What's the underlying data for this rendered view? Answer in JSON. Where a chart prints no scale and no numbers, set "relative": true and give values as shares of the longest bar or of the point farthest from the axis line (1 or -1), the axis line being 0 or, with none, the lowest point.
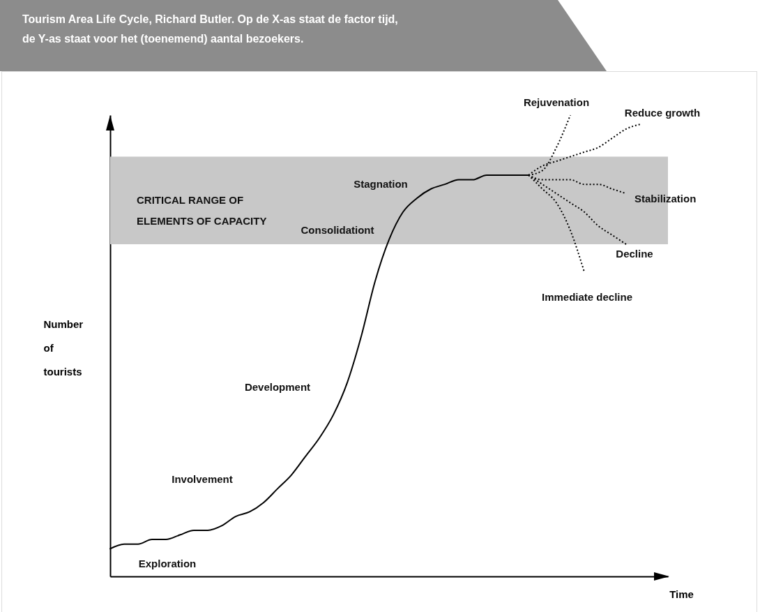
{
  "chart_data": {
    "type": "line",
    "title": "Tourism Area Life Cycle, Richard Butler. Op de X-as staat de factor tijd, de Y-as staat voor het (toenemend) aantal bezoekers.",
    "xlabel": "Time",
    "ylabel": "Number of tourists",
    "relative": true,
    "categories": [
      null,
      null,
      null,
      null,
      null,
      null,
      null,
      null,
      null,
      null,
      null,
      null,
      null,
      null,
      null,
      null,
      null,
      null,
      null,
      null,
      null,
      null,
      null,
      null,
      null,
      null,
      null,
      null,
      null,
      null,
      null,
      null,
      null,
      null,
      null,
      null,
      null,
      null,
      null
    ],
    "series": [
      {
        "color": "#000000",
        "line_style": "solid",
        "values": [
          0.06,
          0.07,
          0.07,
          0.08,
          0.08,
          0.09,
          0.1,
          0.1,
          0.11,
          0.13,
          0.14,
          0.16,
          0.19,
          0.22,
          0.26,
          0.3,
          0.35,
          0.42,
          0.52,
          0.64,
          0.73,
          0.79,
          0.82,
          0.84,
          0.85,
          0.86,
          0.86,
          0.87,
          0.87,
          0.87,
          0.87,
          null,
          null,
          null,
          null,
          null,
          null,
          null,
          null
        ]
      },
      {
        "name": "Rejuvenation",
        "color": "#000000",
        "line_style": "dotted",
        "values": [
          null,
          null,
          null,
          null,
          null,
          null,
          null,
          null,
          null,
          null,
          null,
          null,
          null,
          null,
          null,
          null,
          null,
          null,
          null,
          null,
          null,
          null,
          null,
          null,
          null,
          null,
          null,
          null,
          null,
          null,
          0.87,
          0.88,
          0.93,
          1.0,
          null,
          null,
          null,
          null,
          null
        ]
      },
      {
        "name": "Reduce growth",
        "color": "#000000",
        "line_style": "dotted",
        "values": [
          null,
          null,
          null,
          null,
          null,
          null,
          null,
          null,
          null,
          null,
          null,
          null,
          null,
          null,
          null,
          null,
          null,
          null,
          null,
          null,
          null,
          null,
          null,
          null,
          null,
          null,
          null,
          null,
          null,
          null,
          0.87,
          0.89,
          0.9,
          0.91,
          0.92,
          0.93,
          0.95,
          0.97,
          0.98
        ]
      },
      {
        "name": "Stabilization",
        "color": "#000000",
        "line_style": "dotted",
        "values": [
          null,
          null,
          null,
          null,
          null,
          null,
          null,
          null,
          null,
          null,
          null,
          null,
          null,
          null,
          null,
          null,
          null,
          null,
          null,
          null,
          null,
          null,
          null,
          null,
          null,
          null,
          null,
          null,
          null,
          null,
          0.87,
          0.86,
          0.86,
          0.86,
          0.85,
          0.85,
          0.84,
          0.83,
          null
        ]
      },
      {
        "name": "Decline",
        "color": "#000000",
        "line_style": "dotted",
        "values": [
          null,
          null,
          null,
          null,
          null,
          null,
          null,
          null,
          null,
          null,
          null,
          null,
          null,
          null,
          null,
          null,
          null,
          null,
          null,
          null,
          null,
          null,
          null,
          null,
          null,
          null,
          null,
          null,
          null,
          null,
          0.87,
          0.85,
          0.83,
          0.81,
          0.79,
          0.76,
          0.74,
          0.72,
          null
        ]
      },
      {
        "name": "Immediate decline",
        "color": "#000000",
        "line_style": "dotted",
        "values": [
          null,
          null,
          null,
          null,
          null,
          null,
          null,
          null,
          null,
          null,
          null,
          null,
          null,
          null,
          null,
          null,
          null,
          null,
          null,
          null,
          null,
          null,
          null,
          null,
          null,
          null,
          null,
          null,
          null,
          null,
          0.87,
          0.84,
          0.81,
          0.75,
          0.66,
          null,
          null,
          null,
          null
        ]
      }
    ],
    "bands": [
      {
        "axis": "y",
        "from": 0.72,
        "to": 0.91,
        "label": "CRITICAL RANGE OF ELEMENTS OF CAPACITY",
        "color": "#c8c8c8"
      }
    ],
    "annotations": [
      "Exploration",
      "Involvement",
      "Development",
      "Consolidationt",
      "Stagnation"
    ],
    "grid": false,
    "marker": "none"
  }
}
